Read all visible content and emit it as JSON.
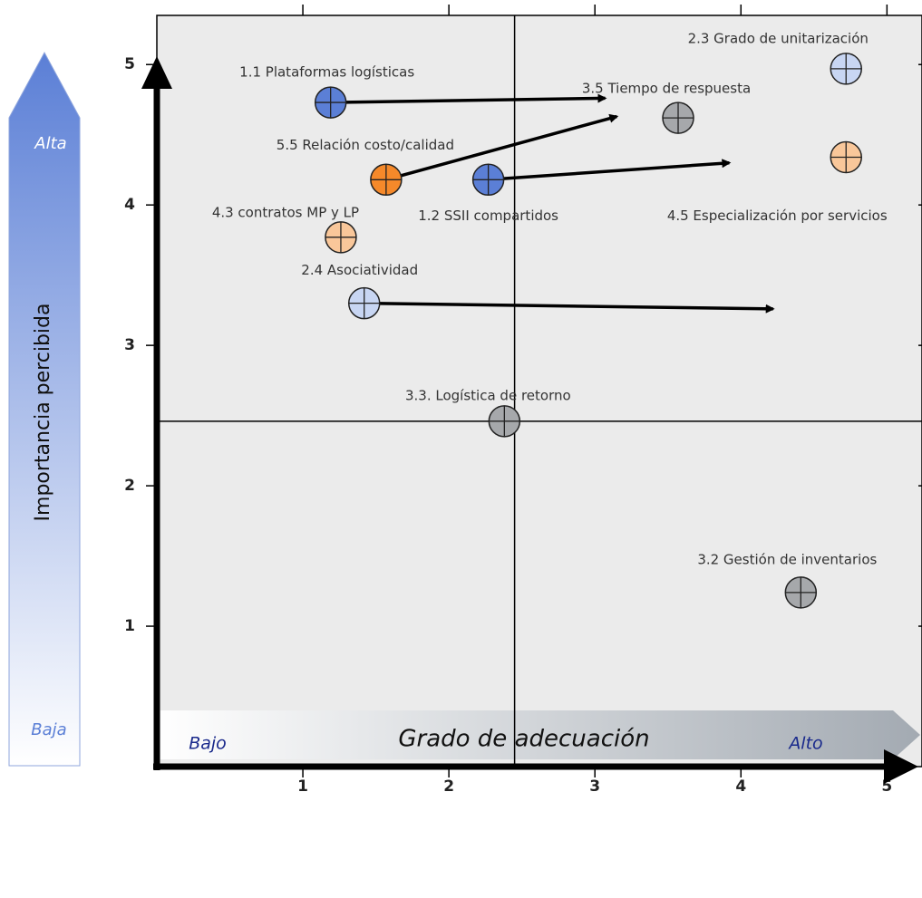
{
  "chart_data": {
    "type": "scatter",
    "y_label": "Importancia  percibida",
    "y_high": "Alta",
    "y_low": "Baja",
    "x_label": "Grado de adecuación",
    "x_low": "Bajo",
    "x_high": "Alto",
    "xlim": [
      0,
      5.24
    ],
    "ylim": [
      0,
      5.35
    ],
    "xticks": [
      1,
      2,
      3,
      4,
      5
    ],
    "yticks": [
      1,
      2,
      3,
      4,
      5
    ],
    "quadrant_x": 2.45,
    "quadrant_y": 2.46,
    "points": [
      {
        "label": "1.1  Plataformas logísticas",
        "x": 1.19,
        "y": 4.73,
        "color": "#5b7fd6",
        "arrow_x": 3.07,
        "arrow_y": 4.76
      },
      {
        "label": "5.5 Relación costo/calidad",
        "x": 1.57,
        "y": 4.18,
        "color": "#f5892a",
        "arrow_x": 3.15,
        "arrow_y": 4.63
      },
      {
        "label": "1.2 SSII compartidos",
        "x": 2.27,
        "y": 4.18,
        "color": "#5b7fd6",
        "arrow_x": 3.92,
        "arrow_y": 4.3
      },
      {
        "label": "3.5 Tiempo de respuesta",
        "x": 3.57,
        "y": 4.62,
        "color": "#a6a8ab"
      },
      {
        "label": "2.3 Grado de unitarización",
        "x": 4.72,
        "y": 4.97,
        "color": "#c8d6f3"
      },
      {
        "label": "4.5 Especialización por servicios",
        "x": 4.72,
        "y": 4.34,
        "color": "#f9c79a"
      },
      {
        "label": "4.3 contratos MP y LP",
        "x": 1.26,
        "y": 3.77,
        "color": "#f9c79a"
      },
      {
        "label": "2.4  Asociatividad",
        "x": 1.42,
        "y": 3.3,
        "color": "#c8d6f3",
        "arrow_x": 4.22,
        "arrow_y": 3.26
      },
      {
        "label": "3.3. Logística de retorno",
        "x": 2.38,
        "y": 2.46,
        "color": "#a6a8ab"
      },
      {
        "label": "3.2 Gestión de inventarios",
        "x": 4.41,
        "y": 1.24,
        "color": "#a6a8ab"
      }
    ]
  }
}
